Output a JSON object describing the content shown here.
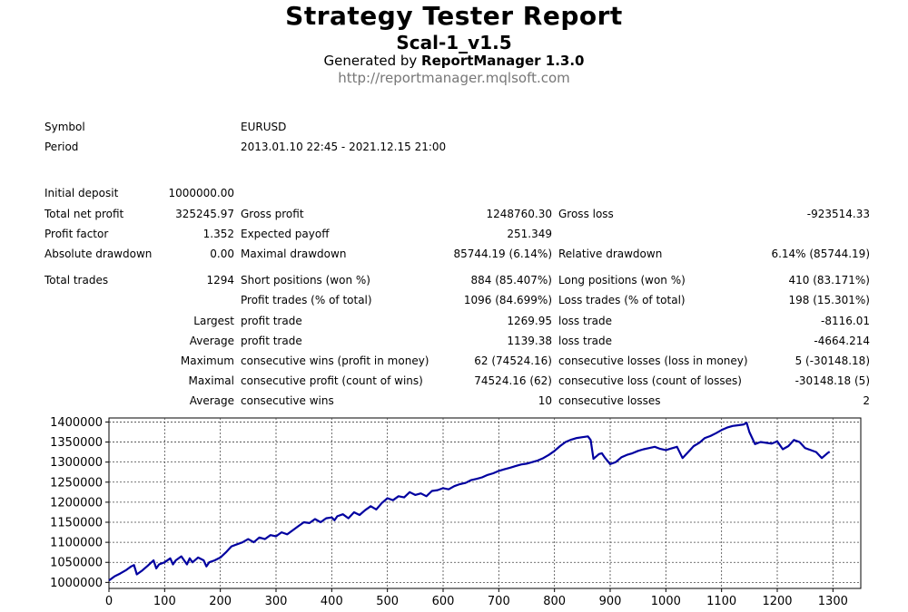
{
  "header": {
    "title": "Strategy Tester Report",
    "subtitle": "Scal-1_v1.5",
    "generated_prefix": "Generated by ",
    "generator": "ReportManager 1.3.0",
    "url": "http://reportmanager.mqlsoft.com"
  },
  "info": {
    "symbol_label": "Symbol",
    "symbol_value": "EURUSD",
    "period_label": "Period",
    "period_value": "2013.01.10 22:45 - 2021.12.15 21:00"
  },
  "stats": {
    "initial_deposit_label": "Initial deposit",
    "initial_deposit": "1000000.00",
    "total_net_profit_label": "Total net profit",
    "total_net_profit": "325245.97",
    "gross_profit_label": "Gross profit",
    "gross_profit": "1248760.30",
    "gross_loss_label": "Gross loss",
    "gross_loss": "-923514.33",
    "profit_factor_label": "Profit factor",
    "profit_factor": "1.352",
    "expected_payoff_label": "Expected payoff",
    "expected_payoff": "251.349",
    "absolute_drawdown_label": "Absolute drawdown",
    "absolute_drawdown": "0.00",
    "maximal_drawdown_label": "Maximal drawdown",
    "maximal_drawdown": "85744.19 (6.14%)",
    "relative_drawdown_label": "Relative drawdown",
    "relative_drawdown": "6.14% (85744.19)"
  },
  "trades": {
    "total_trades_label": "Total trades",
    "total_trades": "1294",
    "short_label": "Short positions (won %)",
    "short_value": "884 (85.407%)",
    "long_label": "Long positions (won %)",
    "long_value": "410 (83.171%)",
    "profit_trades_label": "Profit trades (% of total)",
    "profit_trades_value": "1096 (84.699%)",
    "loss_trades_label": "Loss trades (% of total)",
    "loss_trades_value": "198 (15.301%)",
    "largest_label": "Largest",
    "largest_profit_label": "profit trade",
    "largest_profit_value": "1269.95",
    "largest_loss_label": "loss trade",
    "largest_loss_value": "-8116.01",
    "average_label": "Average",
    "average_profit_label": "profit trade",
    "average_profit_value": "1139.38",
    "average_loss_label": "loss trade",
    "average_loss_value": "-4664.214",
    "maximum_label": "Maximum",
    "max_cons_wins_label": "consecutive wins (profit in money)",
    "max_cons_wins_value": "62 (74524.16)",
    "max_cons_losses_label": "consecutive losses (loss in money)",
    "max_cons_losses_value": "5 (-30148.18)",
    "maximal_label": "Maximal",
    "maximal_cons_profit_label": "consecutive profit (count of wins)",
    "maximal_cons_profit_value": "74524.16 (62)",
    "maximal_cons_loss_label": "consecutive loss (count of losses)",
    "maximal_cons_loss_value": "-30148.18 (5)",
    "average2_label": "Average",
    "avg_cons_wins_label": "consecutive wins",
    "avg_cons_wins_value": "10",
    "avg_cons_losses_label": "consecutive losses",
    "avg_cons_losses_value": "2"
  },
  "chart_data": {
    "type": "line",
    "title": "",
    "xlabel": "",
    "ylabel": "",
    "xlim": [
      0,
      1350
    ],
    "ylim": [
      985000,
      1410000
    ],
    "grid": true,
    "line_color": "#0000a0",
    "x_ticks": [
      "0",
      "100",
      "200",
      "300",
      "400",
      "500",
      "600",
      "700",
      "800",
      "900",
      "1000",
      "1100",
      "1200",
      "1300"
    ],
    "y_ticks": [
      "1000000",
      "1050000",
      "1100000",
      "1150000",
      "1200000",
      "1250000",
      "1300000",
      "1350000",
      "1400000"
    ],
    "series": [
      {
        "x": [
          0,
          10,
          20,
          30,
          40,
          45,
          50,
          60,
          70,
          80,
          85,
          90,
          100,
          110,
          115,
          120,
          130,
          140,
          145,
          150,
          160,
          170,
          175,
          180,
          190,
          200,
          210,
          220,
          230,
          240,
          250,
          260,
          270,
          280,
          290,
          300,
          310,
          320,
          330,
          340,
          350,
          360,
          370,
          380,
          390,
          400,
          405,
          410,
          420,
          430,
          440,
          450,
          460,
          470,
          480,
          490,
          500,
          510,
          520,
          530,
          540,
          550,
          560,
          570,
          580,
          590,
          600,
          610,
          620,
          630,
          640,
          650,
          660,
          670,
          680,
          690,
          700,
          710,
          720,
          730,
          740,
          750,
          760,
          770,
          780,
          790,
          800,
          810,
          820,
          830,
          840,
          850,
          860,
          865,
          870,
          880,
          885,
          890,
          900,
          910,
          920,
          930,
          940,
          950,
          960,
          970,
          980,
          990,
          1000,
          1010,
          1020,
          1030,
          1040,
          1050,
          1060,
          1070,
          1080,
          1090,
          1100,
          1110,
          1120,
          1130,
          1140,
          1145,
          1150,
          1160,
          1170,
          1180,
          1190,
          1200,
          1210,
          1220,
          1230,
          1240,
          1250,
          1260,
          1270,
          1280,
          1290,
          1294
        ],
        "y": [
          1005000,
          1015000,
          1022000,
          1030000,
          1040000,
          1043000,
          1020000,
          1030000,
          1042000,
          1055000,
          1035000,
          1045000,
          1050000,
          1060000,
          1045000,
          1055000,
          1065000,
          1045000,
          1060000,
          1050000,
          1062000,
          1055000,
          1040000,
          1050000,
          1055000,
          1062000,
          1075000,
          1090000,
          1095000,
          1100000,
          1108000,
          1100000,
          1112000,
          1108000,
          1118000,
          1115000,
          1125000,
          1120000,
          1130000,
          1140000,
          1150000,
          1148000,
          1158000,
          1150000,
          1160000,
          1162000,
          1155000,
          1165000,
          1170000,
          1160000,
          1175000,
          1168000,
          1180000,
          1190000,
          1182000,
          1198000,
          1210000,
          1205000,
          1215000,
          1212000,
          1225000,
          1218000,
          1222000,
          1215000,
          1228000,
          1230000,
          1235000,
          1232000,
          1240000,
          1245000,
          1248000,
          1255000,
          1258000,
          1262000,
          1268000,
          1272000,
          1278000,
          1282000,
          1286000,
          1290000,
          1294000,
          1296000,
          1300000,
          1304000,
          1310000,
          1318000,
          1328000,
          1340000,
          1350000,
          1356000,
          1360000,
          1362000,
          1364000,
          1355000,
          1308000,
          1320000,
          1322000,
          1312000,
          1295000,
          1300000,
          1312000,
          1318000,
          1322000,
          1328000,
          1332000,
          1335000,
          1338000,
          1333000,
          1330000,
          1334000,
          1338000,
          1310000,
          1325000,
          1340000,
          1348000,
          1360000,
          1365000,
          1372000,
          1380000,
          1386000,
          1390000,
          1392000,
          1394000,
          1398000,
          1375000,
          1345000,
          1350000,
          1348000,
          1346000,
          1352000,
          1332000,
          1340000,
          1355000,
          1350000,
          1335000,
          1330000,
          1325000,
          1310000,
          1322000,
          1326000
        ]
      }
    ]
  }
}
